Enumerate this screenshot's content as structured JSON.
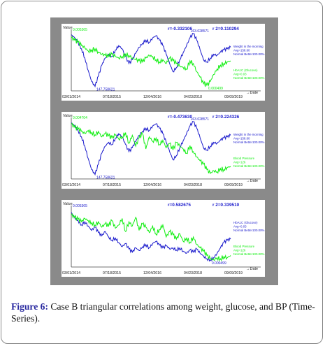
{
  "colors": {
    "series1": "#1a1acc",
    "series2": "#11ee11",
    "panel": "#8a8a8a",
    "caption_accent": "#2a2aa0"
  },
  "figure": {
    "label": "Figure 6:",
    "caption": " Case B triangular correlations among weight, glucose, and BP (Time-Series)."
  },
  "chart_data": [
    {
      "type": "line",
      "ylabel": "Value",
      "xlabel": "Date",
      "x_ticks": [
        "03/01/2014",
        "07/18/2015",
        "12/04/2016",
        "04/23/2018",
        "09/09/2019"
      ],
      "stats": {
        "r": "r=-0.332106",
        "r2": "r 2=0.110294"
      },
      "annotations": [
        {
          "text": "0.005365",
          "series": 2,
          "at": "left-top"
        },
        {
          "text": "163.028571",
          "series": 1,
          "at": "max"
        },
        {
          "text": "147.758621",
          "series": 1,
          "at": "min"
        },
        {
          "text": "0.000499",
          "series": 2,
          "at": "min"
        }
      ],
      "series": [
        {
          "legend": [
            "Weight in the morning",
            "Avg=158.60",
            "Normal Better100.00%"
          ],
          "values": [
            0.98,
            0.92,
            0.84,
            0.72,
            0.55,
            0.32,
            0.12,
            0.03,
            0.22,
            0.42,
            0.55,
            0.62,
            0.58,
            0.7,
            0.78,
            0.72,
            0.58,
            0.45,
            0.52,
            0.64,
            0.75,
            0.82,
            0.88,
            0.84,
            0.92,
            0.96,
            0.88,
            0.78,
            0.62,
            0.45,
            0.3,
            0.38,
            0.52,
            0.65,
            0.78,
            0.92,
            1.0,
            0.88,
            0.7,
            0.52,
            0.48,
            0.55,
            0.62,
            0.6,
            0.66,
            0.7,
            0.72,
            0.75
          ]
        },
        {
          "legend": [
            "HbA1C (Glucose)",
            "Avg=0.03",
            "Normal Better100.00%"
          ],
          "values": [
            0.92,
            0.88,
            0.84,
            0.78,
            0.74,
            0.68,
            0.7,
            0.72,
            0.66,
            0.62,
            0.6,
            0.58,
            0.62,
            0.58,
            0.55,
            0.58,
            0.62,
            0.6,
            0.55,
            0.52,
            0.5,
            0.48,
            0.55,
            0.6,
            0.58,
            0.52,
            0.48,
            0.52,
            0.45,
            0.55,
            0.5,
            0.45,
            0.4,
            0.38,
            0.35,
            0.5,
            0.45,
            0.3,
            0.2,
            0.08,
            0.05,
            0.12,
            0.25,
            0.35,
            0.42,
            0.45,
            0.48,
            0.5
          ]
        }
      ]
    },
    {
      "type": "line",
      "ylabel": "Value",
      "xlabel": "Date",
      "x_ticks": [
        "03/01/2014",
        "07/18/2015",
        "12/04/2016",
        "04/23/2018",
        "09/09/2019"
      ],
      "stats": {
        "r": "r=-0.473630",
        "r2": "r 2=0.224326"
      },
      "annotations": [
        {
          "text": "0.004704",
          "series": 2,
          "at": "left-top"
        },
        {
          "text": "163.028571",
          "series": 1,
          "at": "max"
        },
        {
          "text": "147.758621",
          "series": 1,
          "at": "min"
        }
      ],
      "series": [
        {
          "legend": [
            "Weight in the morning",
            "Avg=158.60",
            "Normal Better100.00%"
          ],
          "values": [
            0.98,
            0.92,
            0.84,
            0.72,
            0.55,
            0.32,
            0.12,
            0.03,
            0.22,
            0.42,
            0.55,
            0.62,
            0.58,
            0.7,
            0.78,
            0.72,
            0.58,
            0.45,
            0.52,
            0.64,
            0.75,
            0.82,
            0.88,
            0.84,
            0.92,
            0.96,
            0.88,
            0.78,
            0.62,
            0.45,
            0.3,
            0.38,
            0.52,
            0.65,
            0.78,
            0.92,
            1.0,
            0.88,
            0.7,
            0.52,
            0.48,
            0.55,
            0.62,
            0.6,
            0.66,
            0.7,
            0.72,
            0.75
          ]
        },
        {
          "legend": [
            "Blood Pressure",
            "Avg=126",
            "Normal Better100.00%"
          ],
          "values": [
            0.95,
            0.9,
            0.86,
            0.82,
            0.78,
            0.84,
            0.8,
            0.76,
            0.82,
            0.72,
            0.78,
            0.74,
            0.7,
            0.76,
            0.68,
            0.72,
            0.8,
            0.6,
            0.75,
            0.55,
            0.7,
            0.78,
            0.5,
            0.72,
            0.64,
            0.7,
            0.58,
            0.66,
            0.52,
            0.6,
            0.48,
            0.62,
            0.55,
            0.5,
            0.42,
            0.56,
            0.45,
            0.35,
            0.28,
            0.22,
            0.12,
            0.05,
            0.1,
            0.08,
            0.14,
            0.12,
            0.16,
            0.18
          ]
        }
      ]
    },
    {
      "type": "line",
      "ylabel": "Value",
      "xlabel": "Date",
      "x_ticks": [
        "03/01/2014",
        "07/18/2015",
        "12/04/2016",
        "04/23/2018",
        "09/09/2019"
      ],
      "stats": {
        "r": "r=0.582675",
        "r2": "r 2=0.339510"
      },
      "annotations": [
        {
          "text": "0.005365",
          "series": 1,
          "at": "left-top"
        },
        {
          "text": "0.000499",
          "series": 1,
          "at": "min"
        }
      ],
      "series": [
        {
          "legend": [
            "HbA1C (Glucose)",
            "Avg=0.03",
            "Normal Better100.00%"
          ],
          "values": [
            0.95,
            0.85,
            0.8,
            0.72,
            0.78,
            0.7,
            0.62,
            0.68,
            0.58,
            0.52,
            0.6,
            0.5,
            0.44,
            0.48,
            0.4,
            0.32,
            0.38,
            0.28,
            0.22,
            0.3,
            0.25,
            0.32,
            0.36,
            0.3,
            0.38,
            0.42,
            0.35,
            0.3,
            0.34,
            0.28,
            0.3,
            0.26,
            0.3,
            0.24,
            0.2,
            0.26,
            0.22,
            0.28,
            0.2,
            0.15,
            0.1,
            0.08,
            0.12,
            0.2,
            0.3,
            0.4,
            0.44,
            0.46
          ]
        },
        {
          "legend": [
            "Blood Pressure",
            "Avg=126",
            "Normal Better100.00%"
          ],
          "values": [
            0.9,
            0.86,
            0.82,
            0.78,
            0.84,
            0.8,
            0.76,
            0.72,
            0.78,
            0.68,
            0.74,
            0.7,
            0.8,
            0.66,
            0.72,
            0.84,
            0.6,
            0.78,
            0.7,
            0.86,
            0.62,
            0.74,
            0.68,
            0.58,
            0.7,
            0.55,
            0.64,
            0.72,
            0.5,
            0.6,
            0.54,
            0.46,
            0.56,
            0.42,
            0.48,
            0.4,
            0.5,
            0.36,
            0.3,
            0.24,
            0.16,
            0.1,
            0.08,
            0.12,
            0.1,
            0.14,
            0.12,
            0.16
          ]
        }
      ]
    }
  ]
}
